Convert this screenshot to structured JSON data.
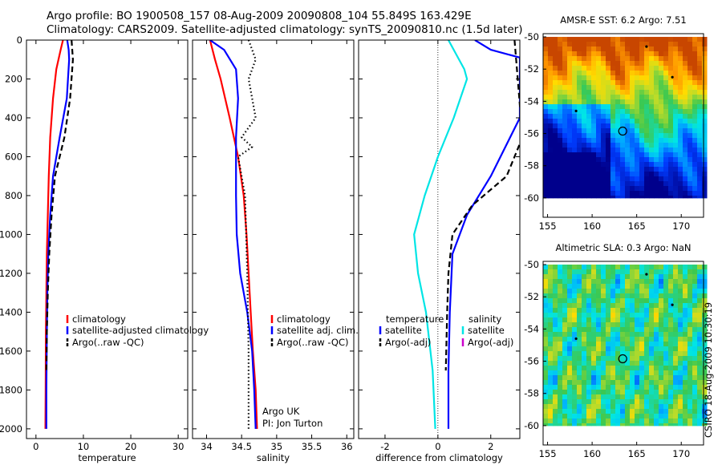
{
  "figure": {
    "title_line1": "Argo profile: BO 1900508_157 08-Aug-2009 20090808_104 55.849S 163.429E",
    "title_line2": "Climatology: CARS2009. Satellite-adjusted climatology: synTS_20090810.nc (1.5d later)",
    "credit": "CSIRO 18-Aug-2009 10:30:19",
    "note_lines": [
      "Argo UK",
      "PI: Jon Turton"
    ]
  },
  "map_panels": [
    {
      "title": "AMSR-E SST: 6.2 Argo: 7.51",
      "kind": "sst",
      "xticks": [
        155,
        160,
        165,
        170
      ],
      "yticks": [
        -50,
        -52,
        -54,
        -56,
        -58,
        -60
      ],
      "xlim": [
        154.5,
        172.5
      ],
      "ylim": [
        -61.2,
        -49.8
      ],
      "data_ylim": [
        -60,
        -50
      ],
      "argo_position": [
        163.43,
        -55.85
      ],
      "float_marks": [
        [
          166.1,
          -50.6
        ],
        [
          169,
          -52.5
        ],
        [
          158.2,
          -54.6
        ]
      ]
    },
    {
      "title": "Altimetric SLA: 0.3 Argo: NaN",
      "kind": "sla",
      "xticks": [
        155,
        160,
        165,
        170
      ],
      "yticks": [
        -50,
        -52,
        -54,
        -56,
        -58,
        -60
      ],
      "xlim": [
        154.5,
        172.5
      ],
      "ylim": [
        -61.2,
        -49.8
      ],
      "data_ylim": [
        -60,
        -50
      ],
      "argo_position": [
        163.43,
        -55.85
      ],
      "float_marks": [
        [
          166.1,
          -50.6
        ],
        [
          169,
          -52.5
        ],
        [
          158.2,
          -54.6
        ]
      ]
    }
  ],
  "chart_data": [
    {
      "type": "line",
      "xlabel": "temperature",
      "ylabel": "",
      "xlim": [
        -2,
        32
      ],
      "ylim": [
        0,
        2050
      ],
      "y_reversed": true,
      "xticks": [
        0,
        10,
        20,
        30
      ],
      "yticks": [
        0,
        200,
        400,
        600,
        800,
        1000,
        1200,
        1400,
        1600,
        1800,
        2000
      ],
      "legend": [
        "climatology",
        "satellite-adjusted climatology",
        "Argo(..raw -QC)"
      ],
      "series": [
        {
          "name": "climatology",
          "color": "#ff0000",
          "style": "solid",
          "x": [
            5.7,
            5.2,
            4.3,
            3.6,
            3.0,
            2.7,
            2.5,
            2.3,
            2.2,
            2.1,
            2.05,
            2.0
          ],
          "y": [
            0,
            50,
            150,
            300,
            500,
            700,
            900,
            1100,
            1300,
            1500,
            1800,
            2000
          ]
        },
        {
          "name": "satellite-adjusted climatology",
          "color": "#0000ff",
          "style": "solid",
          "x": [
            6.6,
            6.9,
            7.0,
            6.5,
            5.0,
            3.6,
            3.0,
            2.6,
            2.4,
            2.3,
            2.2,
            2.2
          ],
          "y": [
            0,
            50,
            100,
            300,
            500,
            700,
            900,
            1100,
            1300,
            1500,
            1800,
            2000
          ]
        },
        {
          "name": "Argo(..raw -QC)",
          "color": "#000000",
          "style": "dashed",
          "x": [
            7.5,
            7.8,
            7.2,
            6.0,
            4.0,
            3.3,
            2.8,
            2.5,
            2.3,
            2.2
          ],
          "y": [
            0,
            100,
            300,
            500,
            700,
            900,
            1100,
            1300,
            1500,
            1700
          ]
        }
      ]
    },
    {
      "type": "line",
      "xlabel": "salinity",
      "ylabel": "",
      "xlim": [
        33.8,
        36.1
      ],
      "ylim": [
        0,
        2050
      ],
      "y_reversed": true,
      "xticks": [
        34,
        34.5,
        35,
        35.5,
        36
      ],
      "yticks": [
        0,
        200,
        400,
        600,
        800,
        1000,
        1200,
        1400,
        1600,
        1800,
        2000
      ],
      "legend": [
        "climatology",
        "satellite adj. clim.",
        "Argo(..raw -QC)"
      ],
      "series": [
        {
          "name": "climatology",
          "color": "#ff0000",
          "style": "solid",
          "x": [
            34.05,
            34.12,
            34.2,
            34.33,
            34.45,
            34.53,
            34.57,
            34.6,
            34.63,
            34.66,
            34.7,
            34.72
          ],
          "y": [
            0,
            100,
            200,
            400,
            600,
            800,
            1000,
            1200,
            1400,
            1600,
            1800,
            2000
          ]
        },
        {
          "name": "satellite adj. clim.",
          "color": "#0000ff",
          "style": "solid",
          "x": [
            34.05,
            34.25,
            34.42,
            34.45,
            34.42,
            34.42,
            34.43,
            34.48,
            34.58,
            34.65,
            34.68,
            34.7
          ],
          "y": [
            0,
            50,
            150,
            300,
            500,
            800,
            1000,
            1200,
            1400,
            1600,
            1800,
            2000
          ]
        },
        {
          "name": "Argo(..raw -QC)",
          "color": "#000000",
          "style": "dotted",
          "x": [
            34.6,
            34.7,
            34.6,
            34.7,
            34.5,
            34.65,
            34.45,
            34.55,
            34.58,
            34.6,
            34.6
          ],
          "y": [
            0,
            100,
            200,
            400,
            500,
            550,
            600,
            800,
            1200,
            1600,
            2000
          ]
        }
      ]
    },
    {
      "type": "line",
      "xlabel": "difference from climatology",
      "ylabel": "",
      "xlim": [
        -3,
        3.1
      ],
      "ylim": [
        0,
        2050
      ],
      "y_reversed": true,
      "xticks": [
        -2,
        0,
        2
      ],
      "yticks": [
        0,
        200,
        400,
        600,
        800,
        1000,
        1200,
        1400,
        1600,
        1800,
        2000
      ],
      "legend_header": [
        "temperature",
        "salinity"
      ],
      "legend": [
        "satellite",
        "Argo(-adj)",
        "satellite",
        "Argo(-adj)"
      ],
      "series": [
        {
          "name": "satellite",
          "color": "#00e5e5",
          "style": "solid",
          "x": [
            0.4,
            0.6,
            1.0,
            1.1,
            0.6,
            0.0,
            -0.5,
            -0.9,
            -0.75,
            -0.45,
            -0.2,
            -0.1
          ],
          "y": [
            0,
            50,
            150,
            200,
            400,
            600,
            800,
            1000,
            1200,
            1400,
            1700,
            2000
          ]
        },
        {
          "name": "satellite",
          "color": "#0000ff",
          "style": "solid",
          "x": [
            1.4,
            2.0,
            3.1,
            3.1,
            2.0,
            1.1,
            0.55,
            0.45,
            0.4,
            0.4
          ],
          "y": [
            0,
            50,
            90,
            400,
            700,
            900,
            1100,
            1400,
            1700,
            2000
          ]
        },
        {
          "name": "Argo(-adj)",
          "color": "#000000",
          "style": "dashed",
          "x": [
            2.9,
            3.2,
            2.6,
            1.3,
            0.55,
            0.4,
            0.35,
            0.3
          ],
          "y": [
            0,
            500,
            700,
            850,
            1000,
            1200,
            1400,
            1700
          ]
        }
      ]
    }
  ]
}
